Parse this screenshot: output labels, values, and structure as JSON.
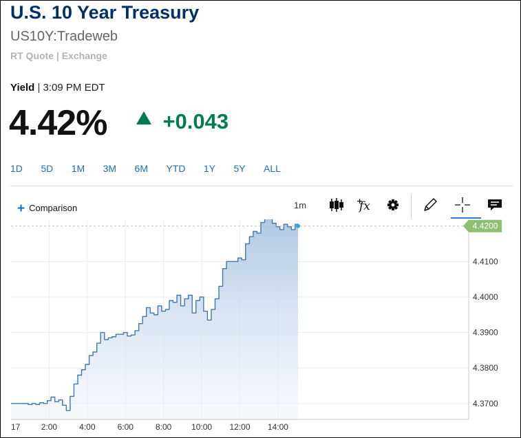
{
  "header": {
    "title": "U.S. 10 Year Treasury",
    "symbol": "US10Y:Tradeweb",
    "rt_quote": "RT Quote | Exchange"
  },
  "quote": {
    "label": "Yield",
    "separator": "|",
    "time": "3:09 PM EDT",
    "price": "4.42%",
    "change": "+0.043"
  },
  "ranges": [
    "1D",
    "5D",
    "1M",
    "3M",
    "6M",
    "YTD",
    "1Y",
    "5Y",
    "ALL"
  ],
  "toolbar": {
    "comparison": "Comparison",
    "interval": "1m",
    "icons": [
      "candlestick-icon",
      "fx-indicator-icon",
      "gear-icon",
      "pencil-icon",
      "crosshair-icon",
      "comment-icon"
    ]
  },
  "colors": {
    "title": "#002f6c",
    "positive": "#007c4d",
    "link": "#1d6fb3",
    "line": "#3d78b0",
    "last_price_tag": "#8cbf6f"
  },
  "chart_data": {
    "type": "area",
    "x_tick_labels": [
      "17",
      "2:00",
      "4:00",
      "6:00",
      "8:00",
      "10:00",
      "12:00",
      "14:00"
    ],
    "y_tick_labels": [
      "4.3700",
      "4.3800",
      "4.3900",
      "4.4000",
      "4.4100"
    ],
    "ylim": [
      4.3655,
      4.4215
    ],
    "last_price_label": "4.4200",
    "last_value": 4.42,
    "grid": true,
    "series": [
      {
        "x": [
          0.3,
          0.7,
          0.9,
          1.1,
          1.3,
          1.5,
          1.7,
          1.9,
          2.1,
          2.3,
          2.5,
          2.7,
          2.9,
          3.1,
          3.3,
          3.5,
          3.7,
          3.9,
          4.1,
          4.3,
          4.5,
          4.7,
          4.9,
          5.1,
          5.3,
          5.5,
          5.7,
          5.9,
          6.1,
          6.3,
          6.5,
          6.7,
          6.9,
          7.1,
          7.3,
          7.5,
          7.7,
          7.9,
          8.1,
          8.3,
          8.5,
          8.7,
          8.9,
          9.1,
          9.3,
          9.5,
          9.7,
          9.9,
          10.1,
          10.3,
          10.5,
          10.7,
          10.9,
          11.1,
          11.3,
          11.5,
          11.7,
          11.9,
          12.1,
          12.3,
          12.5,
          12.7,
          12.9,
          13.1,
          13.3,
          13.5,
          13.7,
          13.9,
          14.1,
          14.3,
          14.5,
          14.7,
          14.9,
          15.05
        ],
        "values": [
          4.37,
          4.37,
          4.3697,
          4.37,
          4.3697,
          4.3702,
          4.37,
          4.3708,
          4.3718,
          4.3705,
          4.371,
          4.3695,
          4.368,
          4.372,
          4.3755,
          4.378,
          4.3795,
          4.381,
          4.3835,
          4.3845,
          4.387,
          4.39,
          4.388,
          4.3885,
          4.3888,
          4.3895,
          4.3895,
          4.39,
          4.389,
          4.3893,
          4.3905,
          4.3925,
          4.3945,
          4.397,
          4.3955,
          4.395,
          4.3975,
          4.396,
          4.3965,
          4.399,
          4.3985,
          4.4005,
          4.3975,
          4.3995,
          4.4005,
          4.3955,
          4.399,
          4.4,
          4.396,
          4.3935,
          4.3965,
          4.3995,
          4.403,
          4.408,
          4.41,
          4.41,
          4.41,
          4.411,
          4.4105,
          4.415,
          4.417,
          4.4185,
          4.418,
          4.421,
          4.4225,
          4.422,
          4.4208,
          4.4198,
          4.419,
          4.4205,
          4.4198,
          4.419,
          4.4205,
          4.42
        ]
      }
    ]
  }
}
